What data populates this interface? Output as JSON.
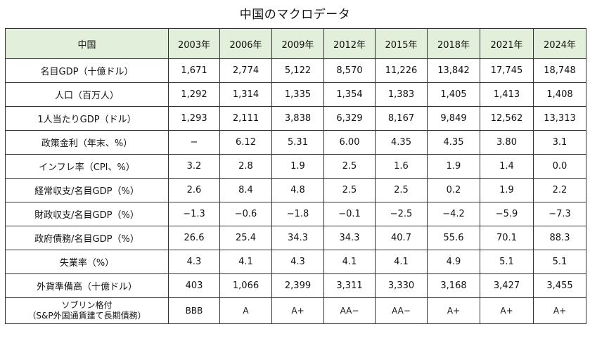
{
  "title": "中国のマクロデータ",
  "header": {
    "corner": "中国",
    "years": [
      "2003年",
      "2006年",
      "2009年",
      "2012年",
      "2015年",
      "2018年",
      "2021年",
      "2024年"
    ]
  },
  "rows": [
    {
      "label": "名目GDP（十億ドル）",
      "values": [
        "1,671",
        "2,774",
        "5,122",
        "8,570",
        "11,226",
        "13,842",
        "17,745",
        "18,748"
      ]
    },
    {
      "label": "人口（百万人）",
      "values": [
        "1,292",
        "1,314",
        "1,335",
        "1,354",
        "1,383",
        "1,405",
        "1,413",
        "1,408"
      ]
    },
    {
      "label": "1人当たりGDP（ドル）",
      "values": [
        "1,293",
        "2,111",
        "3,838",
        "6,329",
        "8,167",
        "9,849",
        "12,562",
        "13,313"
      ]
    },
    {
      "label": "政策金利（年末、%）",
      "values": [
        "−",
        "6.12",
        "5.31",
        "6.00",
        "4.35",
        "4.35",
        "3.80",
        "3.1"
      ]
    },
    {
      "label": "インフレ率（CPI、%）",
      "values": [
        "3.2",
        "2.8",
        "1.9",
        "2.5",
        "1.6",
        "1.9",
        "1.4",
        "0.0"
      ]
    },
    {
      "label": "経常収支/名目GDP（%）",
      "values": [
        "2.6",
        "8.4",
        "4.8",
        "2.5",
        "2.5",
        "0.2",
        "1.9",
        "2.2"
      ]
    },
    {
      "label": "財政収支/名目GDP（%）",
      "values": [
        "−1.3",
        "−0.6",
        "−1.8",
        "−0.1",
        "−2.5",
        "−4.2",
        "−5.9",
        "−7.3"
      ]
    },
    {
      "label": "政府債務/名目GDP（%）",
      "values": [
        "26.6",
        "25.4",
        "34.3",
        "34.3",
        "40.7",
        "55.6",
        "70.1",
        "88.3"
      ]
    },
    {
      "label": "失業率（%）",
      "values": [
        "4.3",
        "4.1",
        "4.3",
        "4.1",
        "4.1",
        "4.9",
        "5.1",
        "5.1"
      ]
    },
    {
      "label": "外貨準備高（十億ドル）",
      "values": [
        "403",
        "1,066",
        "2,399",
        "3,311",
        "3,330",
        "3,168",
        "3,427",
        "3,455"
      ]
    },
    {
      "label": "ソブリン格付",
      "sublabel": "（S&P外国通貨建て長期債務）",
      "values": [
        "BBB",
        "A",
        "A+",
        "AA−",
        "AA−",
        "A+",
        "A+",
        "A+"
      ]
    }
  ]
}
